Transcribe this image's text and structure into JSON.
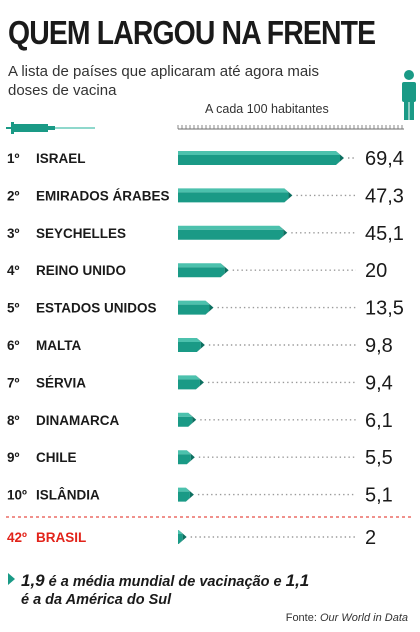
{
  "header": {
    "title": "QUEM LARGOU NA FRENTE",
    "subtitle": "A lista de países que aplicaram até agora mais doses de vacina"
  },
  "colors": {
    "bar_front": "#1a9a86",
    "bar_top": "#4cc1ad",
    "bar_end": "#0d6f60",
    "highlight_text": "#e2231a",
    "leader_dots": "#9a9a9a"
  },
  "icons": [
    "syringe-icon",
    "person-icon"
  ],
  "chart_data": {
    "type": "bar",
    "orientation": "horizontal",
    "title": "QUEM LARGOU NA FRENTE",
    "subtitle": "A lista de países que aplicaram até agora mais doses de vacina",
    "unit_label": "A cada 100 habitantes",
    "xlim": [
      0,
      75
    ],
    "grid": false,
    "legend": "none",
    "categories": [
      "ISRAEL",
      "EMIRADOS ÁRABES",
      "SEYCHELLES",
      "REINO UNIDO",
      "ESTADOS UNIDOS",
      "MALTA",
      "SÉRVIA",
      "DINAMARCA",
      "CHILE",
      "ISLÂNDIA",
      "BRASIL"
    ],
    "ranks": [
      "1º",
      "2º",
      "3º",
      "4º",
      "5º",
      "6º",
      "7º",
      "8º",
      "9º",
      "10º",
      "42º"
    ],
    "values": [
      69.4,
      47.3,
      45.1,
      20,
      13.5,
      9.8,
      9.4,
      6.1,
      5.5,
      5.1,
      2
    ],
    "value_labels": [
      "69,4",
      "47,3",
      "45,1",
      "20",
      "13,5",
      "9,8",
      "9,4",
      "6,1",
      "5,5",
      "5,1",
      "2"
    ],
    "highlight": "BRASIL"
  },
  "footer": {
    "world_value": "1,9",
    "text_1": " é a média mundial de vacinação e ",
    "sa_value": "1,1",
    "text_2": "é a da América do Sul"
  },
  "source": {
    "prefix": "Fonte: ",
    "name": "Our World in Data"
  }
}
